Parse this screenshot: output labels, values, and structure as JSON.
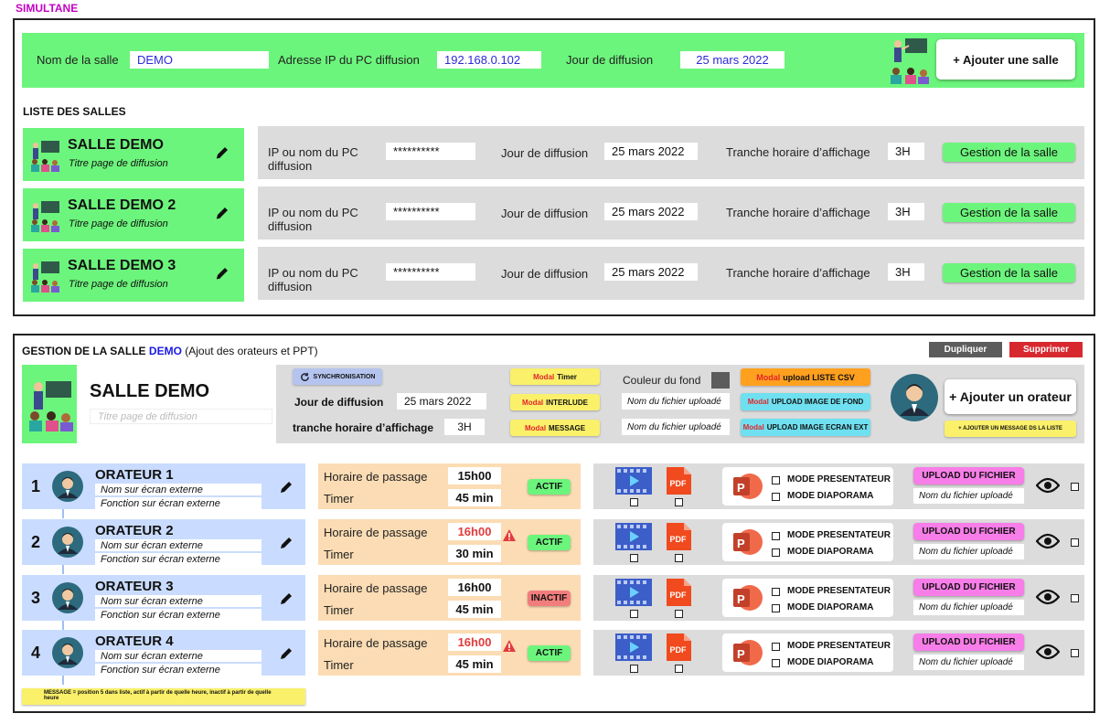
{
  "app": {
    "brand": "SIMULTANE"
  },
  "form": {
    "room_name_label": "Nom de la salle",
    "room_name_value": "DEMO",
    "ip_label": "Adresse IP du PC diffusion",
    "ip_value": "192.168.0.102",
    "day_label": "Jour de diffusion",
    "day_value": "25 mars 2022",
    "add_room_button": "+ Ajouter une  salle"
  },
  "rooms_list": {
    "title": "LISTE DES SALLES",
    "ip_label": "IP ou nom du PC diffusion",
    "day_label": "Jour de diffusion",
    "slot_label": "Tranche horaire d’affichage",
    "manage_button": "Gestion de la salle",
    "items": [
      {
        "name": "SALLE DEMO",
        "subtitle": "Titre page de diffusion",
        "ip": "**********",
        "day": "25 mars 2022",
        "slot": "3H"
      },
      {
        "name": "SALLE DEMO 2",
        "subtitle": "Titre page de diffusion",
        "ip": "**********",
        "day": "25 mars 2022",
        "slot": "3H"
      },
      {
        "name": "SALLE DEMO 3",
        "subtitle": "Titre page de diffusion",
        "ip": "**********",
        "day": "25 mars 2022",
        "slot": "3H"
      }
    ]
  },
  "manage": {
    "title_prefix": "GESTION DE LA SALLE ",
    "title_room": "DEMO",
    "title_suffix": " (Ajout des orateurs et PPT)",
    "duplicate_button": "Dupliquer",
    "delete_button": "Supprimer",
    "room_name": "SALLE DEMO",
    "title_placeholder": "Titre page de diffusion",
    "sync_button": "SYNCHRONISATION",
    "day_label": "Jour de diffusion",
    "day_value": "25 mars 2022",
    "slot_label": "tranche horaire d’affichage",
    "slot_value": "3H",
    "modal_prefix": "Modal",
    "modal_timer": "Timer",
    "modal_interlude": "INTERLUDE",
    "modal_message": "MESSAGE",
    "bg_color_label": "Couleur du fond",
    "bg_color": "#5c5c5c",
    "file_placeholder": "Nom du fichier uploadé",
    "modal_csv": "upload LISTE CSV",
    "modal_bg_image": "UPLOAD IMAGE DE FOND",
    "modal_ext_image": "UPLOAD IMAGE ECRAN EXT",
    "add_speaker_button": "+ Ajouter un orateur",
    "add_message_button": "+ AJOUTER UN  MESSAGE DS LA LISTE"
  },
  "speakers": {
    "name_ext_label": "Nom sur écran externe",
    "func_ext_label": "Fonction sur écran externe",
    "time_label": "Horaire de passage",
    "timer_label": "Timer",
    "pdf_label": "PDF",
    "mode_presenter": "MODE PRESENTATEUR",
    "mode_slideshow": "MODE DIAPORAMA",
    "upload_button": "UPLOAD DU FICHIER",
    "file_placeholder": "Nom du fichier uploadé",
    "items": [
      {
        "num": "1",
        "name": "ORATEUR 1",
        "time": "15h00",
        "timer": "45 min",
        "status": "ACTIF",
        "warn": false
      },
      {
        "num": "2",
        "name": "ORATEUR 2",
        "time": "16h00",
        "timer": "30 min",
        "status": "ACTIF",
        "warn": true
      },
      {
        "num": "3",
        "name": "ORATEUR 3",
        "time": "16h00",
        "timer": "45 min",
        "status": "INACTIF",
        "warn": false
      },
      {
        "num": "4",
        "name": "ORATEUR 4",
        "time": "16h00",
        "timer": "45 min",
        "status": "ACTIF",
        "warn": true
      }
    ],
    "note": "MESSAGE = position 5 dans liste, actif à partir de quelle heure, inactif à partir de quelle heure"
  },
  "colors": {
    "green": "#6cf57c",
    "speaker_bg": "#c9dcff",
    "timing_bg": "#fbdcb4",
    "warn": "#e23b3b",
    "pink": "#f77de8",
    "yellow": "#faf06a",
    "orange": "#ffa01e",
    "cyan": "#6fe0f0",
    "red_btn": "#d8282f",
    "dark_btn": "#5c5c5c"
  }
}
